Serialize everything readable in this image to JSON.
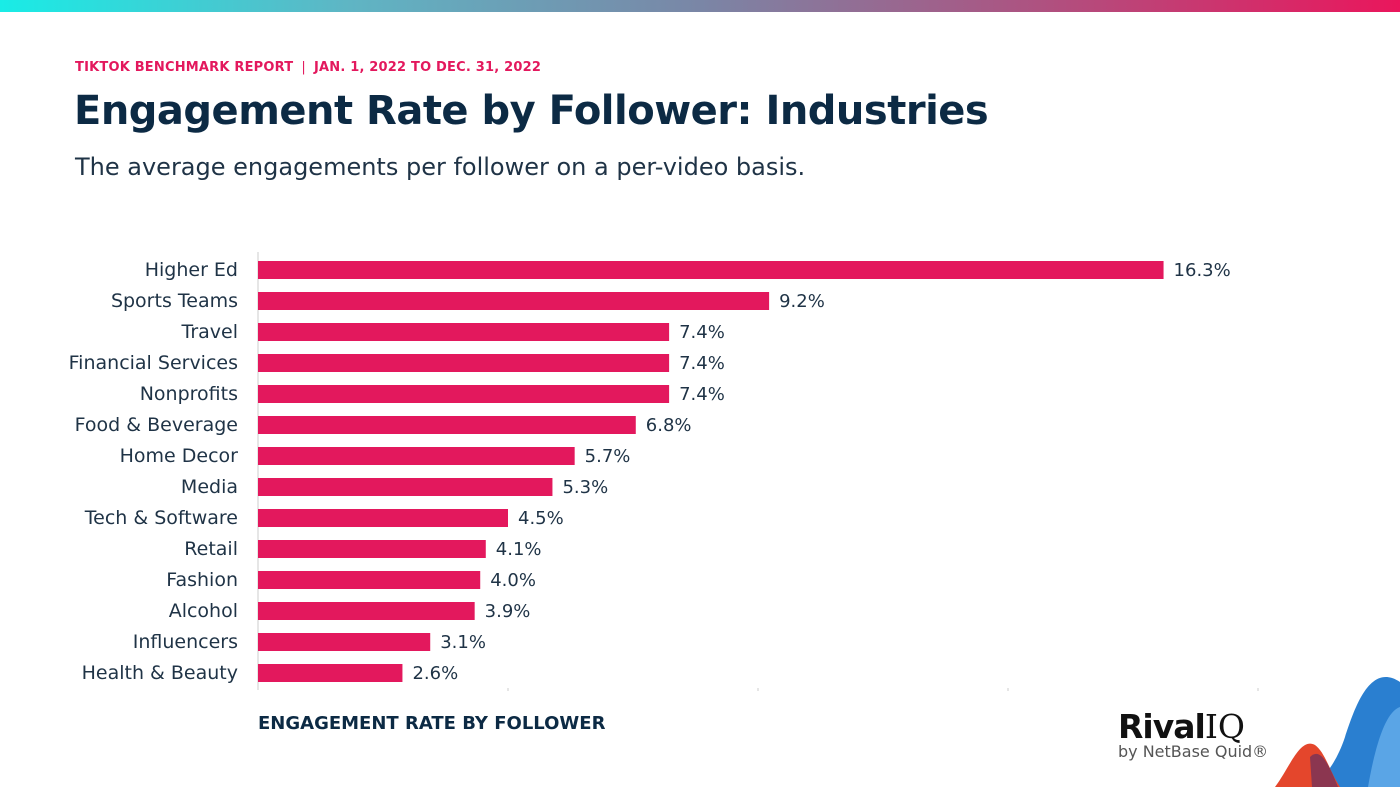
{
  "header": {
    "report": "TIKTOK BENCHMARK REPORT",
    "separator": "|",
    "date_range": "JAN. 1, 2022 TO DEC. 31, 2022",
    "title": "Engagement Rate by Follower: Industries",
    "subtitle": "The average engagements per follower on a per-video basis."
  },
  "logo": {
    "brand": "Rival",
    "brand_suffix": "IQ",
    "tagline": "by NetBase Quid®"
  },
  "colors": {
    "bar": "#e3185d",
    "title": "#0c2a44",
    "accent": "#e3185d"
  },
  "chart_data": {
    "type": "bar",
    "orientation": "horizontal",
    "categories": [
      "Higher Ed",
      "Sports Teams",
      "Travel",
      "Financial Services",
      "Nonprofits",
      "Food & Beverage",
      "Home Decor",
      "Media",
      "Tech & Software",
      "Retail",
      "Fashion",
      "Alcohol",
      "Influencers",
      "Health & Beauty"
    ],
    "values": [
      16.3,
      9.2,
      7.4,
      7.4,
      7.4,
      6.8,
      5.7,
      5.3,
      4.5,
      4.1,
      4.0,
      3.9,
      3.1,
      2.6
    ],
    "data_labels": [
      "16.3%",
      "9.2%",
      "7.4%",
      "7.4%",
      "7.4%",
      "6.8%",
      "5.7%",
      "5.3%",
      "4.5%",
      "4.1%",
      "4.0%",
      "3.9%",
      "3.1%",
      "2.6%"
    ],
    "xlabel": "ENGAGEMENT RATE BY FOLLOWER",
    "xlim": [
      0,
      18
    ],
    "grid": false,
    "color": "#e3185d"
  }
}
